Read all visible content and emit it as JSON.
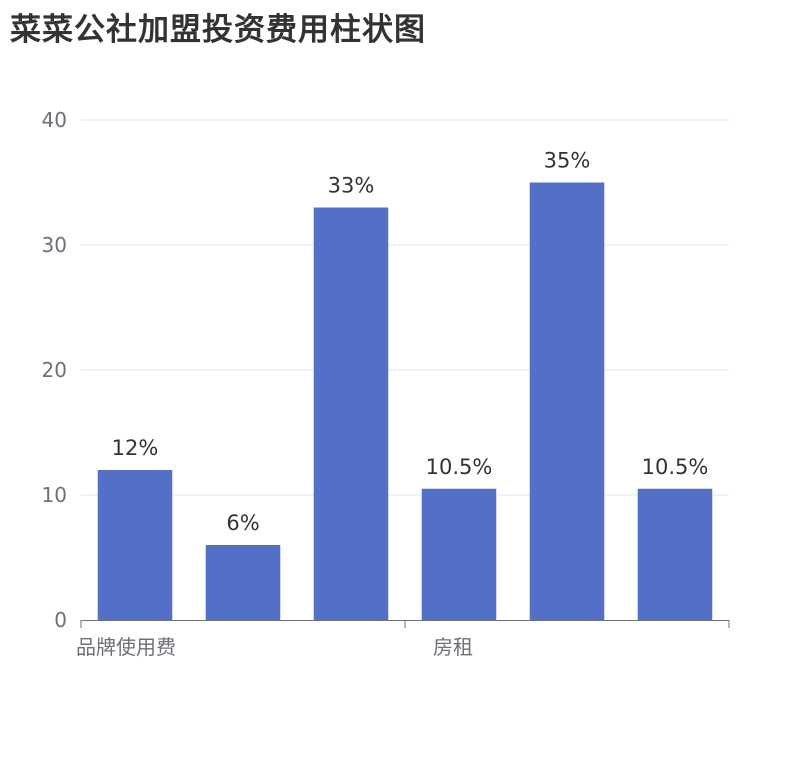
{
  "chart_data": {
    "type": "bar",
    "title": "菜菜公社加盟投资费用柱状图",
    "categories": [
      "品牌使用费",
      "",
      "",
      "房租",
      "",
      ""
    ],
    "x_axis_labels": [
      "品牌使用费",
      "房租"
    ],
    "values": [
      12,
      6,
      33,
      10.5,
      35,
      10.5
    ],
    "data_labels": [
      "12%",
      "6%",
      "33%",
      "10.5%",
      "35%",
      "10.5%"
    ],
    "ylim": [
      0,
      40
    ],
    "yticks": [
      0,
      10,
      20,
      30,
      40
    ],
    "grid": true,
    "xlabel": "",
    "ylabel": "",
    "colors": {
      "bar": "#5470c6",
      "grid": "#e0e6f1",
      "axis": "#6e7079",
      "label": "#333333"
    }
  }
}
